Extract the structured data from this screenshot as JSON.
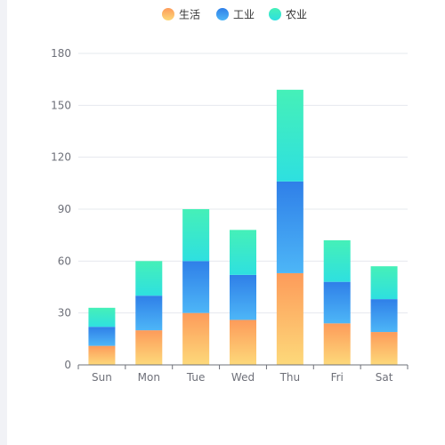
{
  "chart_data": {
    "type": "bar",
    "stacked": true,
    "categories": [
      "Sun",
      "Mon",
      "Tue",
      "Wed",
      "Thu",
      "Fri",
      "Sat"
    ],
    "series": [
      {
        "name": "生活",
        "values": [
          11,
          20,
          30,
          26,
          53,
          24,
          19
        ],
        "gradient": [
          "#fdd97a",
          "#fd9b5a"
        ]
      },
      {
        "name": "工业",
        "values": [
          11,
          20,
          30,
          26,
          53,
          24,
          19
        ],
        "gradient": [
          "#4db6f7",
          "#2f7fe8"
        ]
      },
      {
        "name": "农业",
        "values": [
          11,
          20,
          30,
          26,
          53,
          24,
          19
        ],
        "gradient": [
          "#2ee0e0",
          "#45f0b8"
        ]
      }
    ],
    "yticks": [
      0,
      30,
      60,
      90,
      120,
      150,
      180
    ],
    "ylim": [
      0,
      180
    ],
    "grid": true,
    "legend": "top-center",
    "colors": {
      "gridline": "#e6e8ee",
      "axis": "#6e7079",
      "label": "#6e7079"
    }
  }
}
